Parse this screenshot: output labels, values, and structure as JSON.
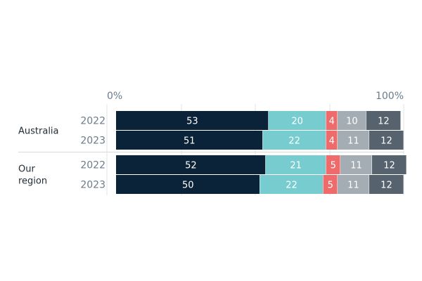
{
  "chart_data": {
    "type": "bar",
    "orientation": "horizontal",
    "stacked": true,
    "xlim": [
      0,
      100
    ],
    "ticks": [
      "0%",
      "100%"
    ],
    "groups": [
      {
        "name": "Australia",
        "name_lines": [
          "Australia"
        ],
        "rows": [
          {
            "year": "2022",
            "values": [
              53,
              20,
              4,
              10,
              12
            ]
          },
          {
            "year": "2023",
            "values": [
              51,
              22,
              4,
              11,
              12
            ]
          }
        ]
      },
      {
        "name": "Our region",
        "name_lines": [
          "Our",
          "region"
        ],
        "rows": [
          {
            "year": "2022",
            "values": [
              52,
              21,
              5,
              11,
              12
            ]
          },
          {
            "year": "2023",
            "values": [
              50,
              22,
              5,
              11,
              12
            ]
          }
        ]
      }
    ],
    "segment_colors": [
      "#0b2338",
      "#76cccf",
      "#ef6b6b",
      "#a3adb3",
      "#56636e"
    ],
    "segment_text_colors": [
      "#ffffff",
      "#ffffff",
      "#ffffff",
      "#ffffff",
      "#ffffff"
    ]
  }
}
